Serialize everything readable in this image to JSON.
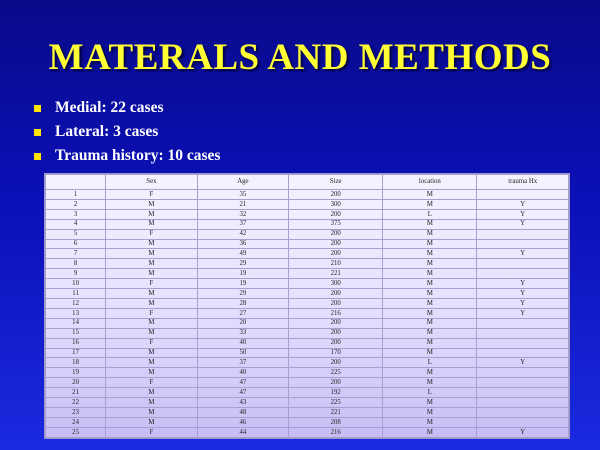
{
  "slide": {
    "title": "MATERALS AND METHODS",
    "bullets": [
      "Medial: 22 cases",
      "Lateral: 3 cases",
      "Trauma history: 10 cases"
    ]
  },
  "table": {
    "headers": [
      "",
      "Sex",
      "Age",
      "Size",
      "location",
      "trauma Hx"
    ],
    "rows": [
      [
        "1",
        "F",
        "35",
        "200",
        "M",
        ""
      ],
      [
        "2",
        "M",
        "21",
        "300",
        "M",
        "Y"
      ],
      [
        "3",
        "M",
        "32",
        "200",
        "L",
        "Y"
      ],
      [
        "4",
        "M",
        "37",
        "375",
        "M",
        "Y"
      ],
      [
        "5",
        "F",
        "42",
        "200",
        "M",
        ""
      ],
      [
        "6",
        "M",
        "36",
        "200",
        "M",
        ""
      ],
      [
        "7",
        "M",
        "49",
        "200",
        "M",
        "Y"
      ],
      [
        "8",
        "M",
        "29",
        "210",
        "M",
        ""
      ],
      [
        "9",
        "M",
        "19",
        "221",
        "M",
        ""
      ],
      [
        "10",
        "F",
        "19",
        "300",
        "M",
        "Y"
      ],
      [
        "11",
        "M",
        "29",
        "200",
        "M",
        "Y"
      ],
      [
        "12",
        "M",
        "28",
        "200",
        "M",
        "Y"
      ],
      [
        "13",
        "F",
        "27",
        "216",
        "M",
        "Y"
      ],
      [
        "14",
        "M",
        "20",
        "200",
        "M",
        ""
      ],
      [
        "15",
        "M",
        "33",
        "200",
        "M",
        ""
      ],
      [
        "16",
        "F",
        "40",
        "200",
        "M",
        ""
      ],
      [
        "17",
        "M",
        "50",
        "170",
        "M",
        ""
      ],
      [
        "18",
        "M",
        "37",
        "200",
        "L",
        "Y"
      ],
      [
        "19",
        "M",
        "40",
        "225",
        "M",
        ""
      ],
      [
        "20",
        "F",
        "47",
        "200",
        "M",
        ""
      ],
      [
        "21",
        "M",
        "47",
        "192",
        "L",
        ""
      ],
      [
        "22",
        "M",
        "43",
        "225",
        "M",
        ""
      ],
      [
        "23",
        "M",
        "48",
        "221",
        "M",
        ""
      ],
      [
        "24",
        "M",
        "46",
        "208",
        "M",
        ""
      ],
      [
        "25",
        "F",
        "44",
        "216",
        "M",
        "Y"
      ]
    ]
  },
  "colors": {
    "background": "#0b10b8",
    "title": "#ffff33",
    "bullet_text": "#ffffff",
    "bullet_mark": "#ffe400"
  }
}
